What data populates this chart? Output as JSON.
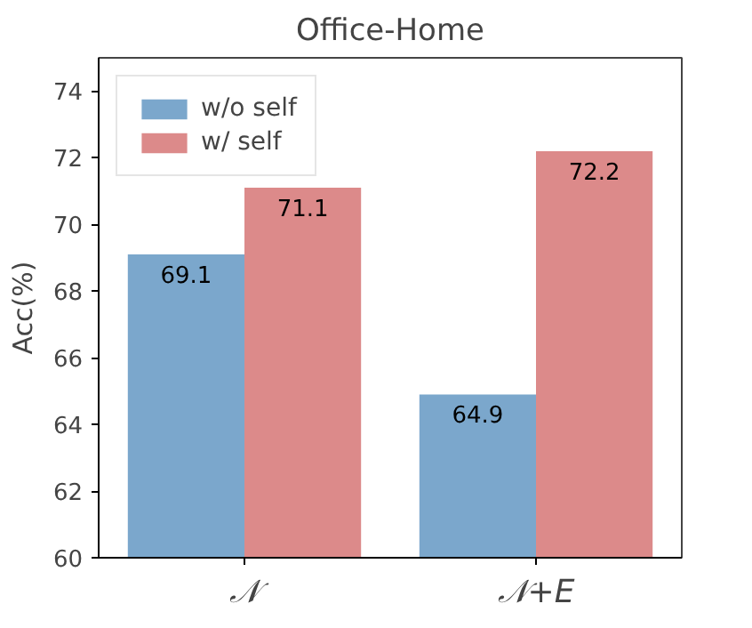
{
  "chart_data": {
    "type": "bar",
    "title": "Office-Home",
    "ylabel": "Acc(%)",
    "categories": [
      "𝒩",
      "𝒩+E"
    ],
    "series": [
      {
        "name": "w/o self",
        "color": "#7ba7cc",
        "values": [
          69.1,
          64.9
        ]
      },
      {
        "name": "w/ self",
        "color": "#dc8a8a",
        "values": [
          71.1,
          72.2
        ]
      }
    ],
    "ylim": [
      60,
      75
    ],
    "yticks": [
      60,
      62,
      64,
      66,
      68,
      70,
      72,
      74
    ],
    "grid": false,
    "legend": "top left",
    "data_labels": true
  }
}
